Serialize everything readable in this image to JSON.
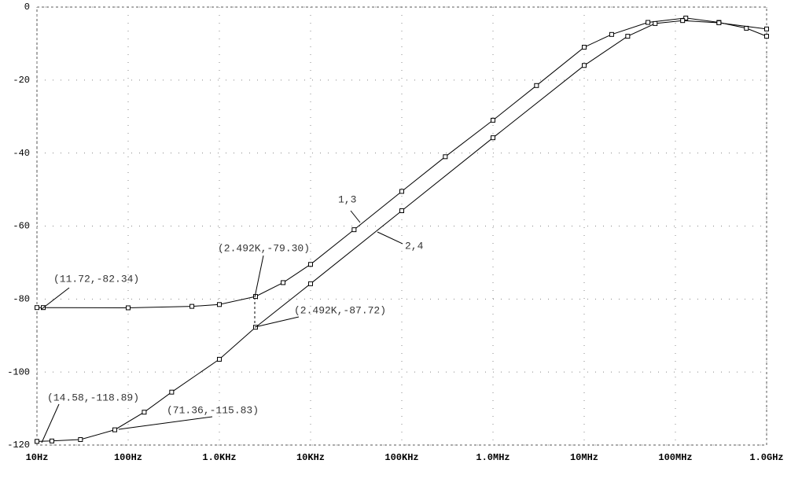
{
  "chart_data": {
    "type": "line",
    "log_x": true,
    "grid": true,
    "xlim": [
      10,
      1000000000
    ],
    "ylim": [
      -120,
      0
    ],
    "xticks": [
      {
        "value": 10,
        "label": "10Hz"
      },
      {
        "value": 100,
        "label": "100Hz"
      },
      {
        "value": 1000,
        "label": "1.0KHz"
      },
      {
        "value": 10000,
        "label": "10KHz"
      },
      {
        "value": 100000,
        "label": "100KHz"
      },
      {
        "value": 1000000,
        "label": "1.0MHz"
      },
      {
        "value": 10000000,
        "label": "10MHz"
      },
      {
        "value": 100000000,
        "label": "100MHz"
      },
      {
        "value": 1000000000,
        "label": "1.0GHz"
      }
    ],
    "yticks": [
      0,
      -20,
      -40,
      -60,
      -80,
      -100,
      -120
    ],
    "series": [
      {
        "name": "1,3",
        "color": "#000000",
        "x": [
          10,
          11.72,
          100,
          500,
          1000,
          2492,
          5000,
          10000,
          30000,
          100000,
          300000,
          1000000,
          3000000,
          10000000,
          20000000,
          50000000,
          130000000,
          300000000,
          600000000,
          1000000000
        ],
        "values": [
          -82.34,
          -82.34,
          -82.4,
          -82,
          -81.5,
          -79.3,
          -75.5,
          -70.5,
          -61,
          -50.5,
          -41,
          -31,
          -21.5,
          -11,
          -7.5,
          -4.2,
          -3,
          -4.2,
          -5.8,
          -8
        ]
      },
      {
        "name": "2,4",
        "color": "#000000",
        "x": [
          10,
          14.58,
          30,
          71.36,
          150,
          300,
          1000,
          2492,
          10000,
          100000,
          1000000,
          10000000,
          30000000,
          60000000,
          120000000,
          300000000,
          1000000000
        ],
        "values": [
          -119,
          -118.89,
          -118.5,
          -115.83,
          -111,
          -105.5,
          -96.5,
          -87.72,
          -75.8,
          -55.8,
          -35.8,
          -16,
          -8,
          -4.5,
          -3.7,
          -4.3,
          -6
        ]
      }
    ],
    "annotations": [
      "(11.72,-82.34)",
      "(2.492K,-79.30)",
      "(2.492K,-87.72)",
      "(14.58,-118.89)",
      "(71.36,-115.83)",
      "1,3",
      "2,4"
    ]
  }
}
